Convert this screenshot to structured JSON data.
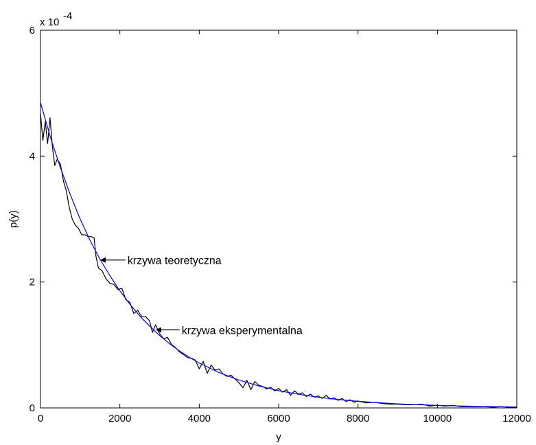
{
  "chart_data": {
    "type": "line",
    "title": "",
    "xlabel": "y",
    "ylabel": "p(y)",
    "xlim": [
      0,
      12000
    ],
    "ylim": [
      0,
      0.0006
    ],
    "x_ticks": [
      0,
      2000,
      4000,
      6000,
      8000,
      10000,
      12000
    ],
    "y_ticks": [
      0,
      2,
      4,
      6
    ],
    "y_multiplier_base": "x 10",
    "y_multiplier_exp": "-4",
    "grid": false,
    "legend": "none",
    "series": [
      {
        "color": "#0000ff",
        "model": "exponential",
        "amplitude": 0.000485,
        "decay_mean": 2060,
        "x": [
          0,
          250,
          500,
          750,
          1000,
          1250,
          1500,
          1750,
          2000,
          2250,
          2500,
          2750,
          3000,
          3250,
          3500,
          3750,
          4000,
          4500,
          5000,
          5500,
          6000,
          6500,
          7000,
          7500,
          8000,
          8500,
          9000,
          9500,
          10000,
          10500,
          11000,
          11500,
          12000
        ],
        "values": [
          0.000485,
          0.00043,
          0.000382,
          0.000339,
          0.0003,
          0.000266,
          0.000236,
          0.00021,
          0.000186,
          0.000165,
          0.000146,
          0.00013,
          0.000115,
          0.000102,
          9.06e-05,
          8.04e-05,
          7.13e-05,
          5.61e-05,
          4.42e-05,
          3.48e-05,
          2.74e-05,
          2.16e-05,
          1.7e-05,
          1.34e-05,
          1.05e-05,
          8.3e-06,
          6.5e-06,
          5.1e-06,
          4e-06,
          3.2e-06,
          2.5e-06,
          2e-06,
          1.5e-06
        ]
      },
      {
        "color": "#000000",
        "x": [
          0,
          60,
          120,
          180,
          240,
          300,
          360,
          420,
          500,
          580,
          650,
          720,
          800,
          880,
          960,
          1040,
          1120,
          1200,
          1280,
          1350,
          1400,
          1460,
          1550,
          1650,
          1750,
          1850,
          1950,
          2050,
          2150,
          2250,
          2350,
          2450,
          2550,
          2650,
          2750,
          2820,
          2900,
          3000,
          3100,
          3200,
          3300,
          3400,
          3500,
          3600,
          3700,
          3800,
          3900,
          4000,
          4100,
          4200,
          4300,
          4400,
          4500,
          4600,
          4700,
          4800,
          4900,
          5000,
          5100,
          5200,
          5300,
          5400,
          5500,
          5600,
          5700,
          5800,
          5900,
          6000,
          6100,
          6200,
          6300,
          6400,
          6500,
          6600,
          6700,
          6800,
          6900,
          7000,
          7100,
          7200,
          7300,
          7400,
          7500,
          7600,
          7700,
          7800,
          7900,
          8000,
          8200,
          8400,
          8600,
          8800,
          9000,
          9200,
          9400,
          9600,
          9800,
          10000,
          10200,
          10400,
          10600,
          10800,
          11000,
          11200,
          11400,
          11600,
          11800,
          12000
        ],
        "values": [
          0.000468,
          0.000425,
          0.000455,
          0.00042,
          0.000461,
          0.000415,
          0.000385,
          0.000395,
          0.000388,
          0.00036,
          0.000345,
          0.00032,
          0.0003,
          0.00029,
          0.000285,
          0.000275,
          0.000275,
          0.000272,
          0.000272,
          0.00027,
          0.00024,
          0.000222,
          0.000218,
          0.000205,
          0.000198,
          0.000196,
          0.000188,
          0.00019,
          0.000172,
          0.000168,
          0.00015,
          0.000155,
          0.000145,
          0.000145,
          0.000138,
          0.00012,
          0.000132,
          0.000118,
          0.00011,
          0.000112,
          0.000101,
          9.6e-05,
          8.9e-05,
          8.5e-05,
          8e-05,
          7.9e-05,
          7.6e-05,
          6.2e-05,
          7.4e-05,
          5.5e-05,
          6.8e-05,
          6e-05,
          6.2e-05,
          5.4e-05,
          5e-05,
          5.2e-05,
          4.6e-05,
          4e-05,
          3.2e-05,
          4.4e-05,
          2.9e-05,
          4.2e-05,
          3.6e-05,
          3.4e-05,
          3e-05,
          3.3e-05,
          2.7e-05,
          3.1e-05,
          2.5e-05,
          2.9e-05,
          2e-05,
          2.7e-05,
          2.2e-05,
          2.4e-05,
          1.8e-05,
          2.2e-05,
          1.7e-05,
          1.9e-05,
          1.5e-05,
          2e-05,
          1.4e-05,
          1.6e-05,
          1.2e-05,
          1.5e-05,
          1e-05,
          1.3e-05,
          9e-06,
          1.1e-05,
          8e-06,
          9e-06,
          7e-06,
          6e-06,
          6e-06,
          5e-06,
          5e-06,
          6e-06,
          3e-06,
          4e-06,
          3e-06,
          4e-06,
          2e-06,
          2e-06,
          2e-06,
          2e-06,
          1e-06,
          2e-06,
          1e-06,
          1e-06
        ]
      }
    ],
    "annotations": [
      {
        "text": "krzywa teoretyczna",
        "arrow_to": [
          1500,
          0.000235
        ]
      },
      {
        "text": "krzywa eksperymentalna",
        "arrow_to": [
          2900,
          0.000124
        ]
      }
    ]
  }
}
